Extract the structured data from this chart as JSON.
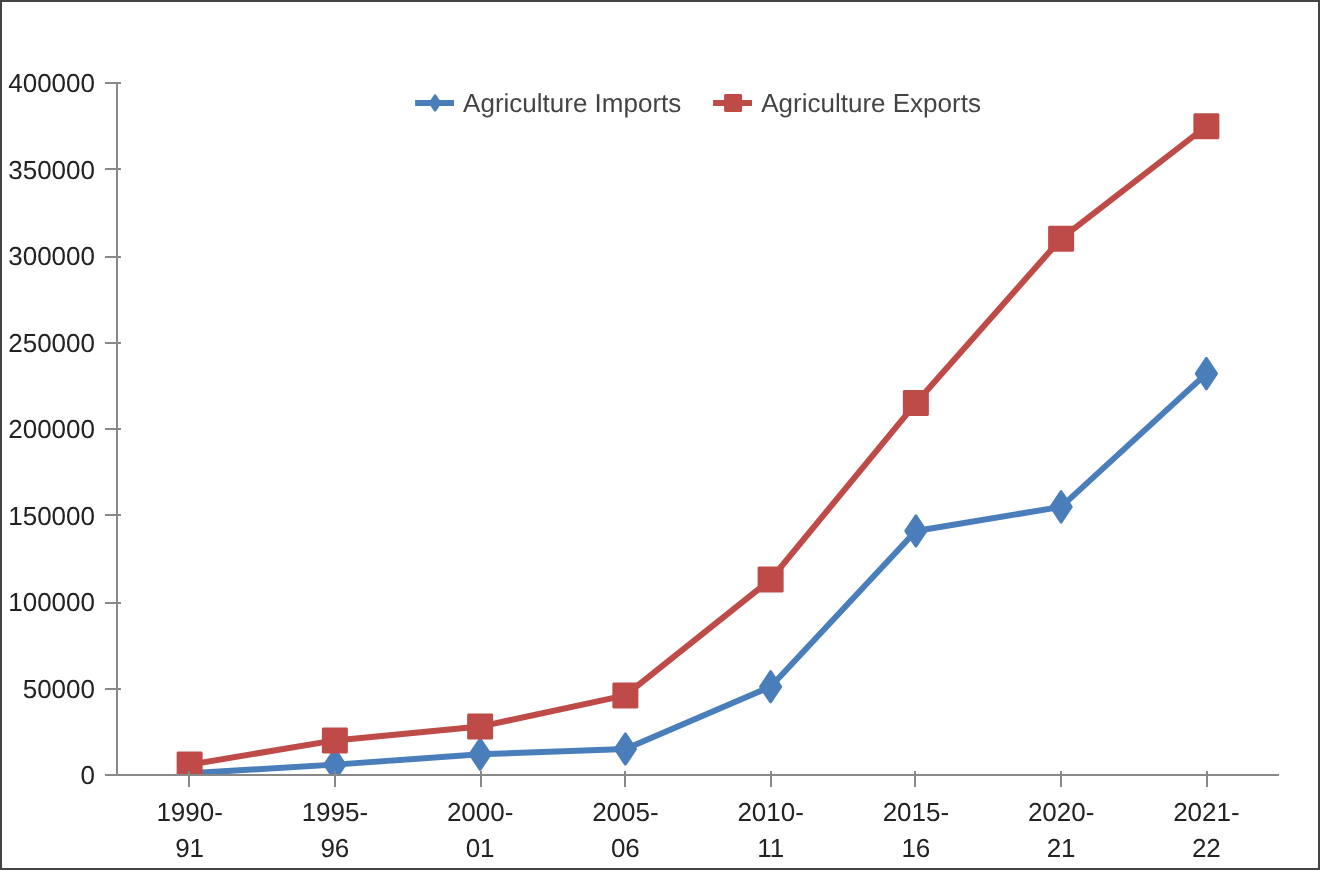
{
  "chart_data": {
    "type": "line",
    "categories": [
      "1990-\n91",
      "1995-\n96",
      "2000-\n01",
      "2005-\n06",
      "2010-\n11",
      "2015-\n16",
      "2020-\n21",
      "2021-\n22"
    ],
    "series": [
      {
        "name": "Agriculture Imports",
        "color": "#4a7ebb",
        "marker": "diamond",
        "values": [
          1000,
          6000,
          12000,
          15000,
          51000,
          141000,
          155000,
          232000
        ]
      },
      {
        "name": "Agriculture Exports",
        "color": "#be4b48",
        "marker": "square",
        "values": [
          6000,
          20000,
          28000,
          46000,
          113000,
          215000,
          310000,
          375000
        ]
      }
    ],
    "ylim": [
      0,
      400000
    ],
    "yticks": [
      0,
      50000,
      100000,
      150000,
      200000,
      250000,
      300000,
      350000,
      400000
    ],
    "grid": false,
    "legend": "top",
    "line_style": "solid"
  }
}
